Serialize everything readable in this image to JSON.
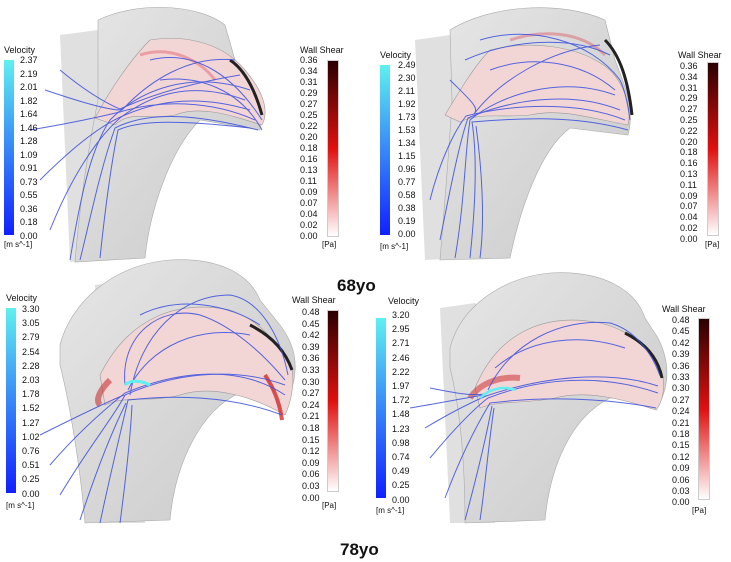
{
  "panels": [
    {
      "velocity": {
        "title": "Velocity",
        "ticks": [
          "2.37",
          "2.19",
          "2.01",
          "1.82",
          "1.64",
          "1.46",
          "1.28",
          "1.09",
          "0.91",
          "0.73",
          "0.55",
          "0.36",
          "0.18",
          "0.00"
        ],
        "unit": "[m s^-1]"
      },
      "shear": {
        "title": "Wall Shear",
        "ticks": [
          "0.36",
          "0.34",
          "0.31",
          "0.29",
          "0.27",
          "0.25",
          "0.22",
          "0.20",
          "0.18",
          "0.16",
          "0.13",
          "0.11",
          "0.09",
          "0.07",
          "0.04",
          "0.02",
          "0.00"
        ],
        "unit": "[Pa]"
      }
    },
    {
      "velocity": {
        "title": "Velocity",
        "ticks": [
          "2.49",
          "2.30",
          "2.11",
          "1.92",
          "1.73",
          "1.53",
          "1.34",
          "1.15",
          "0.96",
          "0.77",
          "0.58",
          "0.38",
          "0.19",
          "0.00"
        ],
        "unit": "[m s^-1]"
      },
      "shear": {
        "title": "Wall Shear",
        "ticks": [
          "0.36",
          "0.34",
          "0.31",
          "0.29",
          "0.27",
          "0.25",
          "0.22",
          "0.20",
          "0.18",
          "0.16",
          "0.13",
          "0.11",
          "0.09",
          "0.07",
          "0.04",
          "0.02",
          "0.00"
        ],
        "unit": "[Pa]"
      }
    },
    {
      "velocity": {
        "title": "Velocity",
        "ticks": [
          "3.30",
          "3.05",
          "2.79",
          "2.54",
          "2.28",
          "2.03",
          "1.78",
          "1.52",
          "1.27",
          "1.02",
          "0.76",
          "0.51",
          "0.25",
          "0.00"
        ],
        "unit": "[m s^-1]"
      },
      "shear": {
        "title": "Wall Shear",
        "ticks": [
          "0.48",
          "0.45",
          "0.42",
          "0.39",
          "0.36",
          "0.33",
          "0.30",
          "0.27",
          "0.24",
          "0.21",
          "0.18",
          "0.15",
          "0.12",
          "0.09",
          "0.06",
          "0.03",
          "0.00"
        ],
        "unit": "[Pa]"
      }
    },
    {
      "velocity": {
        "title": "Velocity",
        "ticks": [
          "3.20",
          "2.95",
          "2.71",
          "2.46",
          "2.22",
          "1.97",
          "1.72",
          "1.48",
          "1.23",
          "0.98",
          "0.74",
          "0.49",
          "0.25",
          "0.00"
        ],
        "unit": "[m s^-1]"
      },
      "shear": {
        "title": "Wall Shear",
        "ticks": [
          "0.48",
          "0.45",
          "0.42",
          "0.39",
          "0.36",
          "0.33",
          "0.30",
          "0.27",
          "0.24",
          "0.21",
          "0.18",
          "0.15",
          "0.12",
          "0.09",
          "0.06",
          "0.03",
          "0.00"
        ],
        "unit": "[Pa]"
      }
    }
  ],
  "labels": {
    "age_top": "68yo",
    "age_bottom": "78yo"
  },
  "colors": {
    "velocity_top": "#5ff0f0",
    "velocity_bottom": "#1020ff",
    "shear_top": "#2a0000",
    "shear_mid": "#e01010",
    "shear_bottom": "#ffffff",
    "streamline": "#3a4fe0"
  }
}
